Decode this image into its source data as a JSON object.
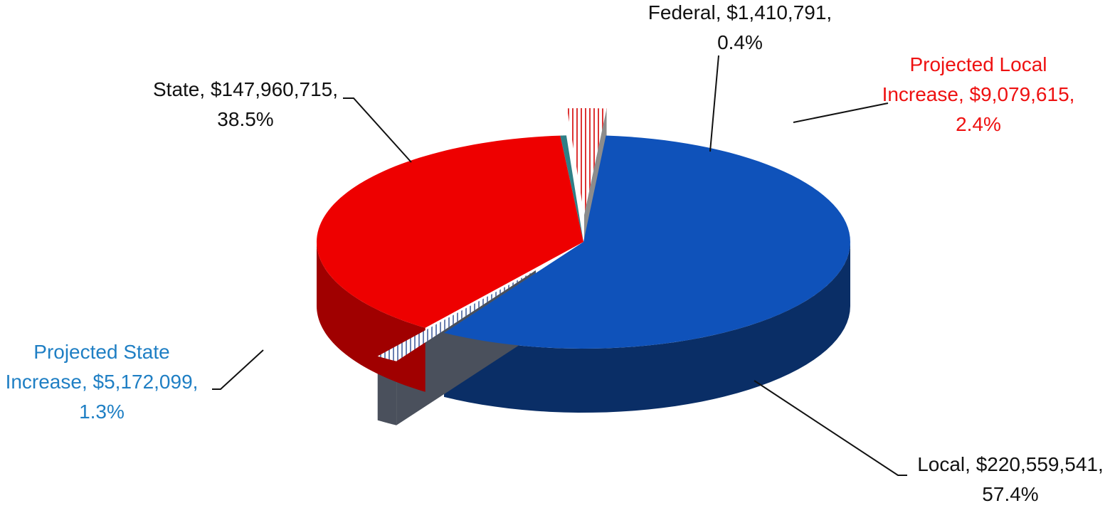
{
  "chart_data": {
    "type": "pie",
    "categories": [
      "Federal",
      "Projected Local Increase",
      "Local",
      "Projected State Increase",
      "State"
    ],
    "values": [
      1410791,
      9079615,
      220559541,
      5172099,
      147960715
    ],
    "labels": [
      [
        "Federal, $1,410,791,",
        "0.4%"
      ],
      [
        "Projected Local",
        "Increase, $9,079,615,",
        "2.4%"
      ],
      [
        "Local, $220,559,541,",
        "57.4%"
      ],
      [
        "Projected State",
        "Increase, $5,172,099,",
        "1.3%"
      ],
      [
        "State, $147,960,715,",
        "38.5%"
      ]
    ],
    "percents": [
      0.4,
      2.4,
      57.4,
      1.3,
      38.5
    ],
    "colors": [
      "#2f7f86",
      "url(#hatch-red)",
      "#0f52ba",
      "url(#hatch-blue)",
      "#ee0000"
    ],
    "side_colors": [
      "#1f5a60",
      "#8c8c8c",
      "#0a2e66",
      "#4a505c",
      "#a00000"
    ],
    "label_colors": [
      "#111111",
      "#ee1111",
      "#111111",
      "#1f7fc4",
      "#111111"
    ]
  }
}
